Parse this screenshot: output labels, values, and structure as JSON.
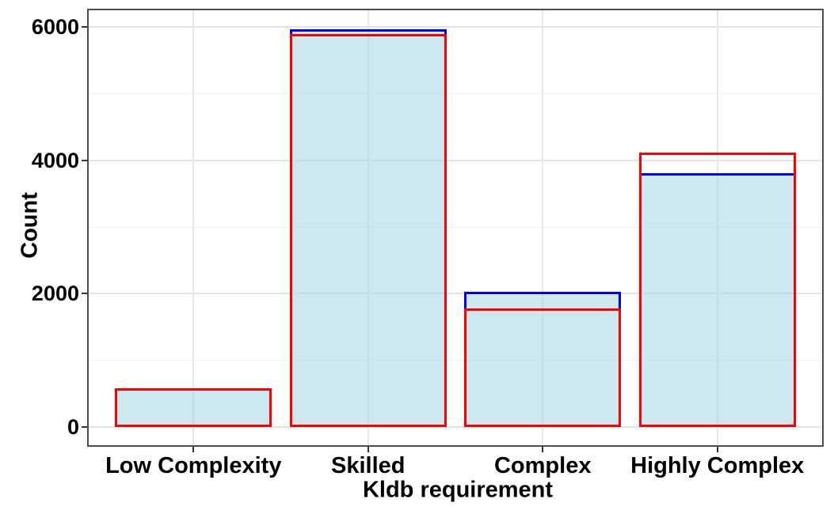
{
  "figure": {
    "background": "#ffffff",
    "panel_border_color": "#4d4d4d",
    "major_grid_color": "#e3e3e3",
    "minor_grid_color": "#efefef",
    "text_color": "#000000"
  },
  "chart_data": {
    "type": "bar",
    "title": "",
    "xlabel": "Kldb requirement",
    "ylabel": "Count",
    "categories": [
      "Low Complexity",
      "Skilled",
      "Complex",
      "Highly Complex"
    ],
    "series": [
      {
        "name": "blue-outlined bars",
        "outline_color": "#0000ff",
        "fill_color": "rgba(173,216,230,0.6)",
        "values": [
          585,
          5960,
          2030,
          3810
        ]
      },
      {
        "name": "red-outlined bars",
        "outline_color": "#ff0000",
        "fill_color": "transparent",
        "values": [
          585,
          5890,
          1780,
          4120
        ]
      }
    ],
    "y_ticks": [
      0,
      2000,
      4000,
      6000
    ],
    "y_minor_ticks": [
      1000,
      3000,
      5000
    ],
    "ylim": [
      0,
      6000
    ],
    "grid": true,
    "legend": "none",
    "bar_width_fraction": 0.9
  }
}
